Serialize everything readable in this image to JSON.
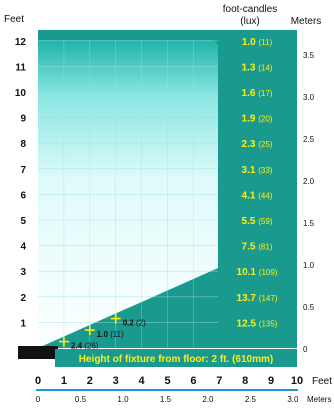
{
  "chart_data": {
    "type": "area",
    "title": "",
    "left_axis_title": "Feet",
    "right_values_title": "foot-candles",
    "right_values_subtitle": "(lux)",
    "right_axis_title": "Meters",
    "bottom_axis_title": "Feet",
    "bottom_metric_title": "Meters",
    "caption": "Height of fixture from floor: 2 ft. (610mm)",
    "left_ticks": [
      "1",
      "2",
      "3",
      "4",
      "5",
      "6",
      "7",
      "8",
      "9",
      "10",
      "11",
      "12"
    ],
    "right_ticks": [
      "0",
      "0.5",
      "1.0",
      "1.5",
      "2.0",
      "2.5",
      "3.0",
      "3.5"
    ],
    "bottom_ticks": [
      "0",
      "1",
      "2",
      "3",
      "4",
      "5",
      "6",
      "7",
      "8",
      "9",
      "10"
    ],
    "bottom_metric_ticks": [
      "0",
      "0.5",
      "1.0",
      "1.5",
      "2.0",
      "2.5",
      "3.0"
    ],
    "illuminance": [
      {
        "y_ft": 12,
        "fc": "1.0",
        "lux": "(11)"
      },
      {
        "y_ft": 11,
        "fc": "1.3",
        "lux": "(14)"
      },
      {
        "y_ft": 10,
        "fc": "1.6",
        "lux": "(17)"
      },
      {
        "y_ft": 9,
        "fc": "1.9",
        "lux": "(20)"
      },
      {
        "y_ft": 8,
        "fc": "2.3",
        "lux": "(25)"
      },
      {
        "y_ft": 7,
        "fc": "3.1",
        "lux": "(33)"
      },
      {
        "y_ft": 6,
        "fc": "4.1",
        "lux": "(44)"
      },
      {
        "y_ft": 5,
        "fc": "5.5",
        "lux": "(59)"
      },
      {
        "y_ft": 4,
        "fc": "7.5",
        "lux": "(81)"
      },
      {
        "y_ft": 3,
        "fc": "10.1",
        "lux": "(109)"
      },
      {
        "y_ft": 2,
        "fc": "13.7",
        "lux": "(147)"
      },
      {
        "y_ft": 1,
        "fc": "12.5",
        "lux": "(135)"
      }
    ],
    "floor_points": [
      {
        "x_ft": 1,
        "y_ft": 0.25,
        "fc": "2.4",
        "lux": "(26)"
      },
      {
        "x_ft": 2,
        "y_ft": 0.7,
        "fc": "1.0",
        "lux": "(11)"
      },
      {
        "x_ft": 3,
        "y_ft": 1.15,
        "fc": "0.2",
        "lux": "(2)"
      }
    ],
    "colors": {
      "teal": "#1a9a8f",
      "light_cyan": "#bff5f4",
      "yellow": "#ffee11",
      "blue_rule": "#1e9ad6",
      "dark": "#111111"
    }
  }
}
